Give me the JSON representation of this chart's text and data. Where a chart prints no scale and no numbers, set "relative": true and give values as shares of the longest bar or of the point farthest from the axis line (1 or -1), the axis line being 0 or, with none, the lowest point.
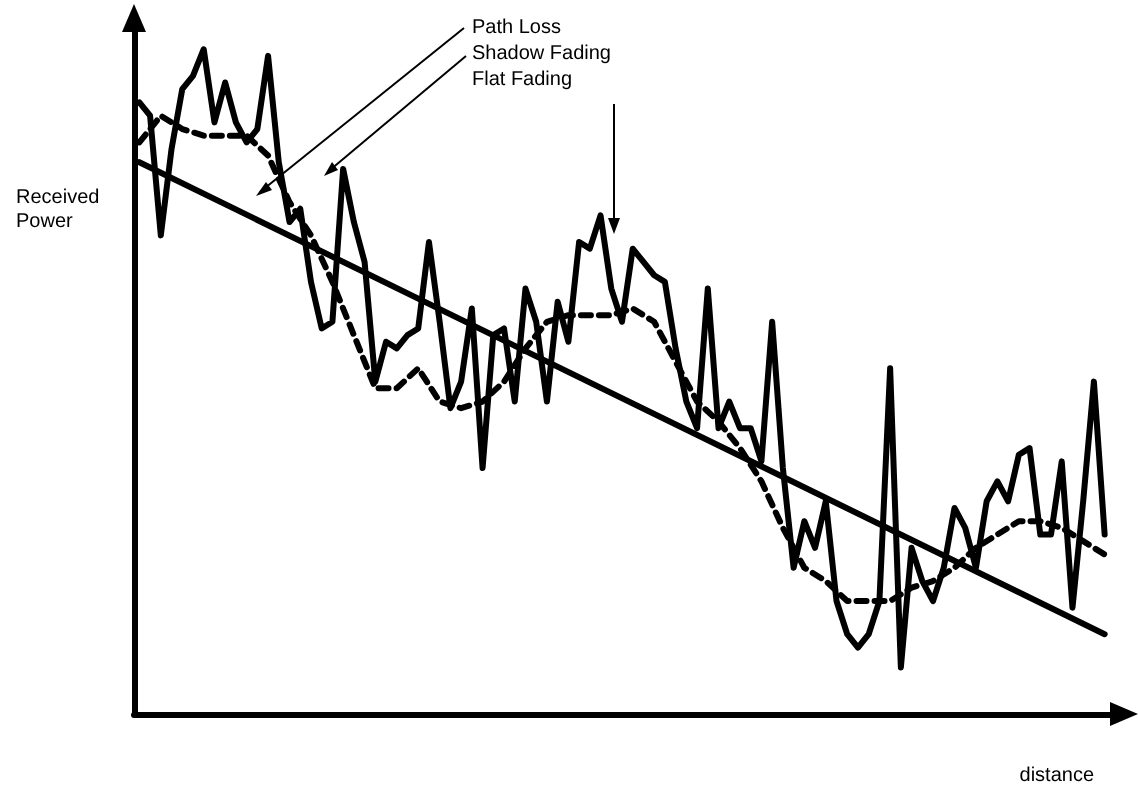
{
  "chart_data": {
    "type": "line",
    "relative": true,
    "xlabel": "distance",
    "ylabel": "Received Power",
    "annotations": [
      "Path Loss",
      "Shadow Fading",
      "Flat Fading"
    ],
    "categories": [
      null,
      null,
      null,
      null,
      null,
      null,
      null,
      null,
      null,
      null,
      null,
      null,
      null,
      null,
      null,
      null,
      null,
      null,
      null,
      null,
      null,
      null,
      null,
      null,
      null,
      null,
      null,
      null,
      null,
      null,
      null,
      null,
      null,
      null,
      null,
      null,
      null,
      null,
      null,
      null,
      null,
      null,
      null,
      null,
      null,
      null,
      null,
      null,
      null,
      null,
      null,
      null,
      null,
      null,
      null,
      null,
      null,
      null,
      null,
      null,
      null,
      null,
      null,
      null,
      null,
      null,
      null,
      null,
      null,
      null,
      null,
      null,
      null,
      null,
      null,
      null,
      null,
      null,
      null,
      null,
      null,
      null,
      null,
      null,
      null,
      null,
      null,
      null,
      null,
      null,
      null
    ],
    "marker": "none",
    "grid": false,
    "series": [
      {
        "color": "#000000",
        "line_style": "solid",
        "values": [
          0.83,
          null,
          null,
          null,
          null,
          null,
          null,
          null,
          null,
          null,
          null,
          null,
          null,
          null,
          null,
          null,
          null,
          null,
          null,
          null,
          null,
          null,
          null,
          null,
          null,
          null,
          null,
          null,
          null,
          null,
          null,
          null,
          null,
          null,
          null,
          null,
          null,
          null,
          null,
          null,
          null,
          null,
          null,
          null,
          null,
          null,
          null,
          null,
          null,
          null,
          null,
          null,
          null,
          null,
          null,
          null,
          null,
          null,
          null,
          null,
          null,
          null,
          null,
          null,
          null,
          null,
          null,
          null,
          null,
          null,
          null,
          null,
          null,
          null,
          null,
          null,
          null,
          null,
          null,
          null,
          null,
          null,
          null,
          null,
          null,
          null,
          null,
          null,
          null,
          null,
          0.12
        ]
      },
      {
        "color": "#000000",
        "line_style": "dashed",
        "values": [
          0.86,
          null,
          0.9,
          null,
          0.88,
          null,
          0.87,
          null,
          0.87,
          null,
          0.87,
          null,
          0.84,
          null,
          0.77,
          null,
          0.72,
          null,
          0.65,
          null,
          0.57,
          null,
          0.49,
          null,
          0.49,
          null,
          0.52,
          null,
          0.47,
          null,
          0.46,
          null,
          0.47,
          null,
          0.5,
          null,
          0.55,
          null,
          0.59,
          null,
          0.6,
          null,
          0.6,
          null,
          0.6,
          null,
          0.61,
          null,
          0.59,
          null,
          0.53,
          null,
          0.47,
          null,
          0.44,
          null,
          0.4,
          null,
          0.35,
          null,
          0.28,
          null,
          0.22,
          null,
          0.2,
          null,
          0.17,
          null,
          0.17,
          null,
          0.17,
          null,
          0.19,
          null,
          0.2,
          null,
          0.22,
          null,
          0.25,
          null,
          0.27,
          null,
          0.29,
          null,
          0.29,
          null,
          0.28,
          null,
          0.26,
          null,
          0.24
        ]
      },
      {
        "color": "#000000",
        "line_style": "solid",
        "values": [
          0.92,
          0.9,
          0.72,
          0.85,
          0.94,
          0.96,
          1.0,
          0.89,
          0.95,
          0.89,
          0.86,
          0.88,
          0.99,
          0.83,
          0.74,
          0.76,
          0.65,
          0.58,
          0.59,
          0.82,
          0.74,
          0.68,
          0.5,
          0.56,
          0.55,
          0.57,
          0.58,
          0.71,
          0.59,
          0.46,
          0.5,
          0.61,
          0.37,
          0.57,
          0.58,
          0.47,
          0.64,
          0.59,
          0.47,
          0.62,
          0.56,
          0.71,
          0.7,
          0.75,
          0.64,
          0.59,
          0.7,
          0.68,
          0.66,
          0.65,
          0.55,
          0.47,
          0.43,
          0.64,
          0.43,
          0.47,
          0.43,
          0.43,
          0.38,
          0.59,
          0.37,
          0.22,
          0.29,
          0.25,
          0.32,
          0.17,
          0.12,
          0.1,
          0.12,
          0.17,
          0.52,
          0.07,
          0.25,
          0.2,
          0.17,
          0.22,
          0.31,
          0.28,
          0.22,
          0.32,
          0.35,
          0.32,
          0.39,
          0.4,
          0.27,
          0.27,
          0.38,
          0.16,
          0.32,
          0.5,
          0.27
        ]
      }
    ]
  }
}
